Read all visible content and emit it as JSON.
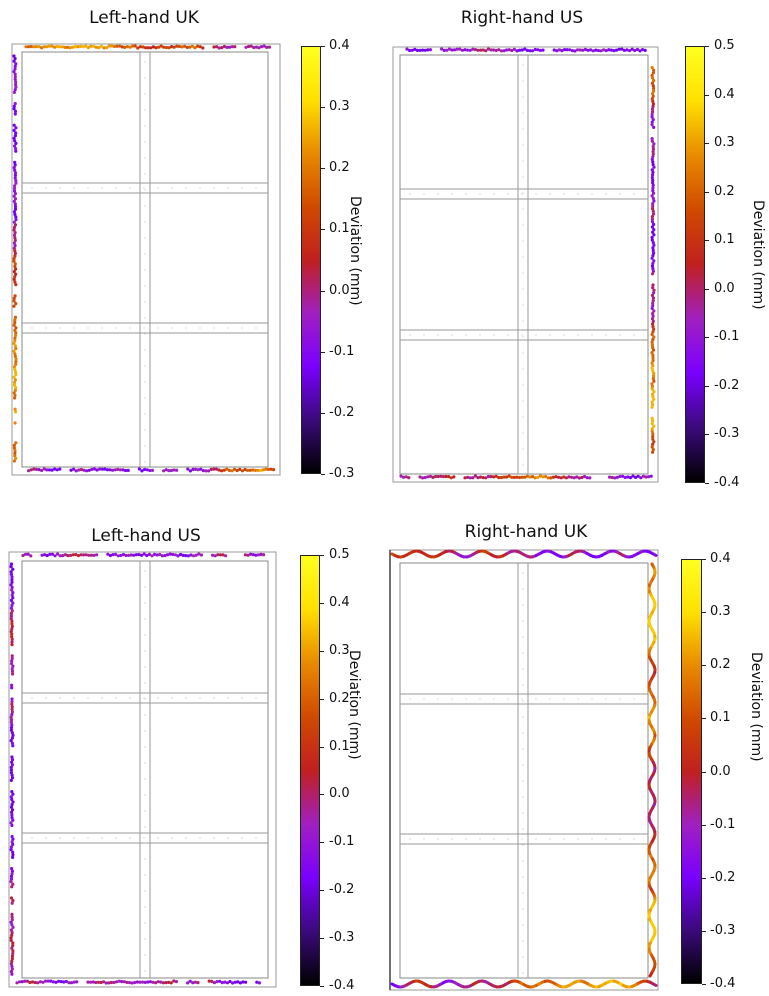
{
  "colorbar_label": "Deviation (mm)",
  "colormap": [
    "#000000",
    "#3a0a7a",
    "#7a00ff",
    "#a020c0",
    "#c02020",
    "#d04a00",
    "#e88a00",
    "#ffe000",
    "#ffff20"
  ],
  "panels": [
    {
      "id": "left-hand-uk",
      "title": "Left-hand UK",
      "colorbar_ticks": [
        "0.4",
        "0.3",
        "0.2",
        "0.1",
        "0.0",
        "-0.1",
        "-0.2",
        "-0.3"
      ],
      "range": [
        -0.3,
        0.4
      ]
    },
    {
      "id": "right-hand-us",
      "title": "Right-hand US",
      "colorbar_ticks": [
        "0.5",
        "0.4",
        "0.3",
        "0.2",
        "0.1",
        "0.0",
        "-0.1",
        "-0.2",
        "-0.3",
        "-0.4"
      ],
      "range": [
        -0.4,
        0.5
      ]
    },
    {
      "id": "left-hand-us",
      "title": "Left-hand US",
      "colorbar_ticks": [
        "0.5",
        "0.4",
        "0.3",
        "0.2",
        "0.1",
        "0.0",
        "-0.1",
        "-0.2",
        "-0.3",
        "-0.4"
      ],
      "range": [
        -0.4,
        0.5
      ]
    },
    {
      "id": "right-hand-uk",
      "title": "Right-hand UK",
      "colorbar_ticks": [
        "0.4",
        "0.3",
        "0.2",
        "0.1",
        "0.0",
        "-0.1",
        "-0.2",
        "-0.3",
        "-0.4"
      ],
      "range": [
        -0.4,
        0.4
      ]
    }
  ]
}
